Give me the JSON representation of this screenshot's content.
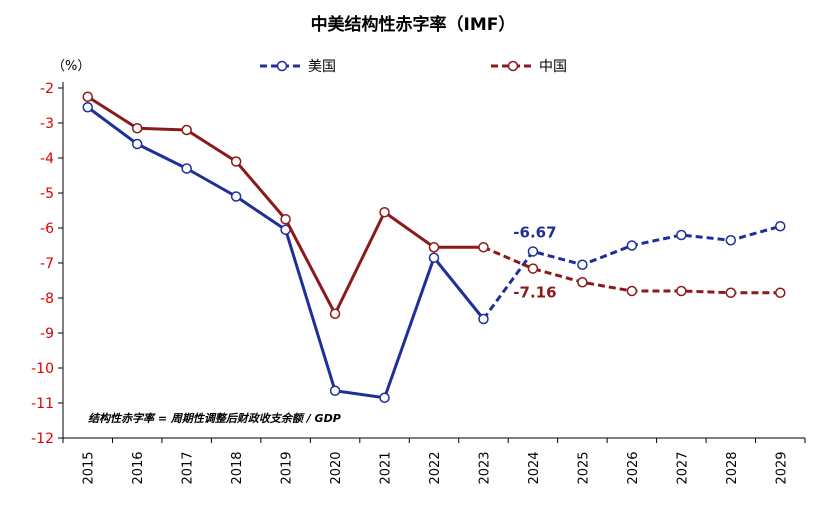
{
  "chart_data": {
    "type": "line",
    "title": "中美结构性赤字率（IMF）",
    "unit_label": "（%）",
    "note": "结构性赤字率 = 周期性调整后财政收支余额 / GDP",
    "x": [
      "2015",
      "2016",
      "2017",
      "2018",
      "2019",
      "2020",
      "2021",
      "2022",
      "2023",
      "2024",
      "2025",
      "2026",
      "2027",
      "2028",
      "2029"
    ],
    "ylim": [
      -12,
      -2
    ],
    "yticks": [
      -2,
      -3,
      -4,
      -5,
      -6,
      -7,
      -8,
      -9,
      -10,
      -11,
      -12
    ],
    "grid": false,
    "legend_position": "top",
    "actual_until": "2023",
    "series": [
      {
        "name": "美国",
        "color": "#1f2f9a",
        "values": [
          -2.55,
          -3.6,
          -4.3,
          -5.1,
          -6.05,
          -10.65,
          -10.85,
          -6.85,
          -8.6,
          -6.67,
          -7.05,
          -6.5,
          -6.2,
          -6.35,
          -5.95
        ]
      },
      {
        "name": "中国",
        "color": "#8b1a1a",
        "values": [
          -2.25,
          -3.15,
          -3.2,
          -4.1,
          -5.75,
          -8.45,
          -5.55,
          -6.55,
          -6.55,
          -7.16,
          -7.55,
          -7.8,
          -7.8,
          -7.85,
          -7.85
        ]
      }
    ],
    "data_labels": [
      {
        "series": 0,
        "x": "2024",
        "text": "-6.67"
      },
      {
        "series": 1,
        "x": "2024",
        "text": "-7.16"
      }
    ]
  }
}
